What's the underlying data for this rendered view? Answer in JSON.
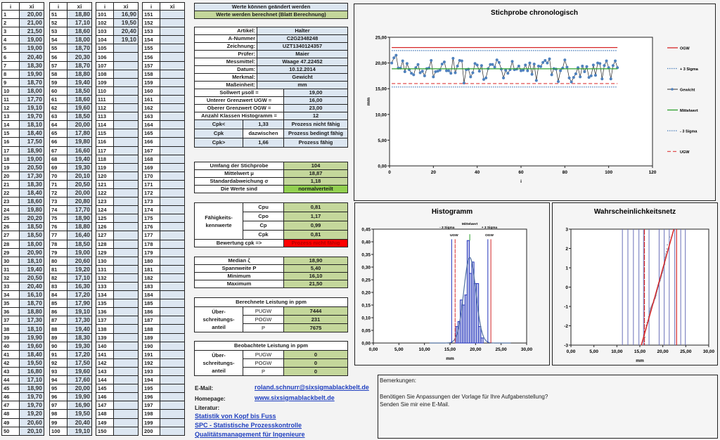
{
  "datatable": {
    "header_i": "i",
    "header_xi": "xi",
    "xi": [
      "20,00",
      "21,00",
      "21,50",
      "19,00",
      "19,00",
      "20,40",
      "18,30",
      "19,90",
      "18,70",
      "18,00",
      "17,70",
      "19,10",
      "19,70",
      "18,10",
      "18,40",
      "17,50",
      "18,90",
      "19,00",
      "20,50",
      "17,30",
      "18,30",
      "18,40",
      "18,60",
      "19,80",
      "20,20",
      "18,50",
      "18,50",
      "18,00",
      "20,90",
      "18,10",
      "19,40",
      "20,50",
      "20,40",
      "16,10",
      "18,70",
      "18,80",
      "17,30",
      "18,10",
      "19,90",
      "19,60",
      "18,40",
      "19,50",
      "16,80",
      "17,10",
      "18,90",
      "19,70",
      "19,70",
      "19,20",
      "20,60",
      "20,10",
      "18,80",
      "17,10",
      "18,60",
      "18,00",
      "18,70",
      "20,30",
      "18,70",
      "18,80",
      "19,40",
      "18,50",
      "18,60",
      "19,60",
      "18,50",
      "20,00",
      "17,80",
      "19,80",
      "16,60",
      "19,40",
      "19,30",
      "20,10",
      "20,50",
      "20,00",
      "20,80",
      "17,70",
      "18,90",
      "18,80",
      "16,40",
      "18,50",
      "19,00",
      "20,60",
      "19,20",
      "17,10",
      "16,30",
      "17,20",
      "17,90",
      "19,10",
      "17,30",
      "19,40",
      "18,30",
      "19,30",
      "17,20",
      "17,50",
      "19,60",
      "17,60",
      "20,00",
      "19,90",
      "16,90",
      "19,50",
      "20,40",
      "19,10",
      "16,90",
      "19,50",
      "20,40",
      "19,10"
    ]
  },
  "legend_top": {
    "editable": "Werte können geändert werden",
    "computed": "Werte werden berechnet (Blatt Berechnung)"
  },
  "info": {
    "artikel_label": "Artikel:",
    "artikel": "Halter",
    "anummer_label": "A-Nummer",
    "anummer": "C2G2348248",
    "zeichnung_label": "Zeichnung:",
    "zeichnung": "UZT1340124357",
    "pruefer_label": "Prüfer:",
    "pruefer": "Maier",
    "messmittel_label": "Messmittel:",
    "messmittel": "Waage 47.22452",
    "datum_label": "Datum:",
    "datum": "10.12.2014",
    "merkmal_label": "Merkmal:",
    "merkmal": "Gewicht",
    "einheit_label": "Maßeinheit:",
    "einheit": "mm",
    "sollwert_label": "Sollwert μsoll =",
    "sollwert": "19,00",
    "ugw_label": "Unterer Grenzwert UGW =",
    "ugw": "16,00",
    "ogw_label": "Oberer Grenzwert OGW =",
    "ogw": "23,00",
    "klassen_label": "Anzahl Klassen Histogramm =",
    "klassen": "12",
    "cpk_lt_label": "Cpk<",
    "cpk_lt": "1,33",
    "cpk_lt_text": "Prozess nicht fähig",
    "cpk_label": "Cpk",
    "cpk_mid": "dazwischen",
    "cpk_mid_text": "Prozess bedingt fähig",
    "cpk_gt_label": "Cpk>",
    "cpk_gt": "1,66",
    "cpk_gt_text": "Prozess fähig"
  },
  "stats": {
    "umfang_label": "Umfang der Stichprobe",
    "umfang": "104",
    "mittel_label": "Mittelwert μ",
    "mittel": "18,87",
    "std_label": "Standardabweichung σ",
    "std": "1,18",
    "vert_label": "Die Werte sind",
    "vert": "normalverteilt"
  },
  "capability": {
    "label": "Fähigkeits- kennwerte",
    "cpu_label": "Cpu",
    "cpu": "0,81",
    "cpo_label": "Cpo",
    "cpo": "1,17",
    "cp_label": "Cp",
    "cp": "0,99",
    "cpk_label": "Cpk",
    "cpk": "0,81",
    "bewertung_label": "Bewertung cpk =>",
    "bewertung": "Prozess nicht fähig"
  },
  "descr": {
    "median_label": "Median ζ",
    "median": "18,90",
    "spann_label": "Spannweite P",
    "spann": "5,40",
    "min_label": "Minimum",
    "min": "16,10",
    "max_label": "Maximum",
    "max": "21,50"
  },
  "ppm_calc": {
    "title": "Berechnete Leistung in ppm",
    "label": "Über- schreitungs- anteil",
    "pugw_label": "PUGW",
    "pugw": "7444",
    "pogw_label": "POGW",
    "pogw": "231",
    "p_label": "P",
    "p": "7675"
  },
  "ppm_obs": {
    "title": "Beobachtete Leistung in ppm",
    "label": "Über- schreitungs- anteil",
    "pugw_label": "PUGW",
    "pugw": "0",
    "pogw_label": "POGW",
    "pogw": "0",
    "p_label": "P",
    "p": "0"
  },
  "contact": {
    "email_label": "E-Mail:",
    "email": "roland.schnurr@sixsigmablackbelt.de",
    "home_label": "Homepage:",
    "home": "www.sixsigmablackbelt.de",
    "lit_label": "Literatur:",
    "books": [
      "Statistik von Kopf bis Fuss",
      "SPC - Statistische Prozesskontrolle",
      "Qualitätsmanagement für Ingenieure"
    ]
  },
  "remarks": {
    "title": "Bemerkungen:",
    "line1": "Benötigen Sie Anpassungen der Vorlage für Ihre Aufgabenstellung?",
    "line2": "Senden Sie mir eine E-Mail."
  },
  "colors": {
    "ogw": "#d62728",
    "ugw": "#e05050",
    "sigma": "#4a7ebb",
    "mean": "#2ca02c",
    "series": "#4f81bd",
    "blue_cell": "#dce6f1",
    "green_cell": "#c4d79b",
    "red_cell": "#ff0000"
  },
  "chart_data": [
    {
      "type": "line",
      "title": "Stichprobe chronologisch",
      "xlabel": "i",
      "ylabel": "mm",
      "xlim": [
        0,
        120
      ],
      "ylim": [
        0,
        25
      ],
      "xticks": [
        "0",
        "20",
        "40",
        "60",
        "80",
        "100",
        "120"
      ],
      "yticks": [
        "0,00",
        "5,00",
        "10,00",
        "15,00",
        "20,00",
        "25,00"
      ],
      "legend": "right",
      "series": [
        {
          "name": "OGW",
          "value": 23.0
        },
        {
          "name": "+ 3 Sigma",
          "value": 22.41
        },
        {
          "name": "Gewicht",
          "source": "datatable.xi"
        },
        {
          "name": "Mittelwert",
          "value": 18.87
        },
        {
          "name": "- 3 Sigma",
          "value": 15.33
        },
        {
          "name": "UGW",
          "value": 16.0
        }
      ]
    },
    {
      "type": "bar",
      "title": "Histogramm",
      "xlabel": "mm",
      "xlim": [
        0,
        30
      ],
      "ylim": [
        0,
        0.45
      ],
      "xticks": [
        "0,00",
        "5,00",
        "10,00",
        "15,00",
        "20,00",
        "25,00",
        "30,00"
      ],
      "yticks": [
        "0,00",
        "0,05",
        "0,10",
        "0,15",
        "0,20",
        "0,25",
        "0,30",
        "0,35",
        "0,40",
        "0,45"
      ],
      "bins_start": 16.1,
      "bin_width": 0.45,
      "values": [
        0.065,
        0.085,
        0.17,
        0.15,
        0.19,
        0.405,
        0.275,
        0.32,
        0.235,
        0.235,
        0.065,
        0.02
      ],
      "normal_curve": {
        "mean": 18.87,
        "sd": 1.18
      },
      "markers": [
        {
          "label": "- 3 Sigma",
          "x": 15.33
        },
        {
          "label": "UGW",
          "x": 16.0
        },
        {
          "label": "Mittelwert",
          "x": 18.87
        },
        {
          "label": "+ 3 Sigma",
          "x": 22.41
        },
        {
          "label": "OGW",
          "x": 23.0
        }
      ]
    },
    {
      "type": "scatter",
      "title": "Wahrscheinlichkeitsnetz",
      "xlabel": "mm",
      "ylabel": "u - Wert",
      "xlim": [
        0,
        30
      ],
      "ylim": [
        -3,
        3
      ],
      "xticks": [
        "0,00",
        "5,00",
        "10,00",
        "15,00",
        "20,00",
        "25,00",
        "30,00"
      ],
      "yticks": [
        "-3",
        "-2",
        "-1",
        "0",
        "1",
        "2",
        "3"
      ],
      "fit_line": [
        [
          15.33,
          -3
        ],
        [
          22.41,
          3
        ]
      ],
      "limits": [
        16.0,
        23.0
      ],
      "grid_x": [
        11.2,
        12.4,
        13.6,
        14.8,
        15.8,
        17.0,
        19.2,
        20.3,
        21.4,
        22.6,
        23.9,
        24.9
      ]
    }
  ]
}
